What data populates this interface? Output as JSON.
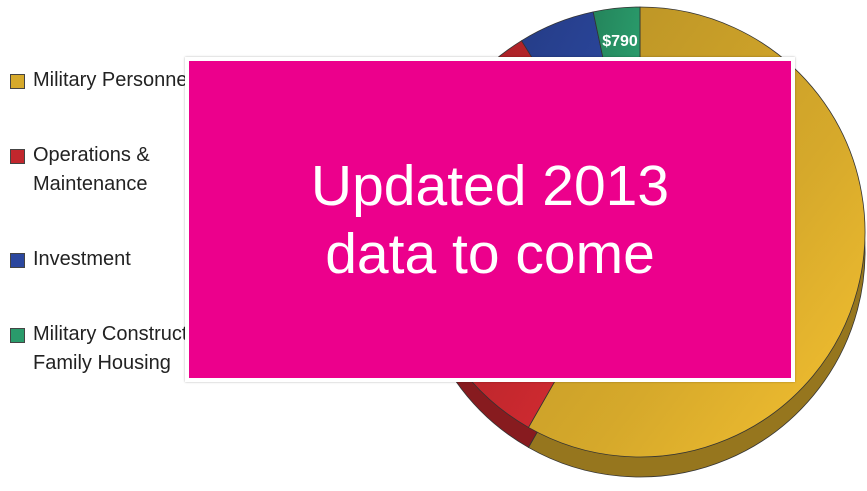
{
  "chart_data": {
    "type": "pie",
    "categories": [
      "Military Personnel",
      "Operations & Maintenance",
      "Investment",
      "Military Construction & Family Housing"
    ],
    "values": [
      13800,
      7800,
      1300,
      790
    ],
    "value_labels": [
      null,
      null,
      null,
      "$790"
    ],
    "colors": [
      "#d6a92b",
      "#c1272d",
      "#2b479e",
      "#2a9b6b"
    ]
  },
  "overlay": {
    "text": "Updated 2013 data to come"
  }
}
